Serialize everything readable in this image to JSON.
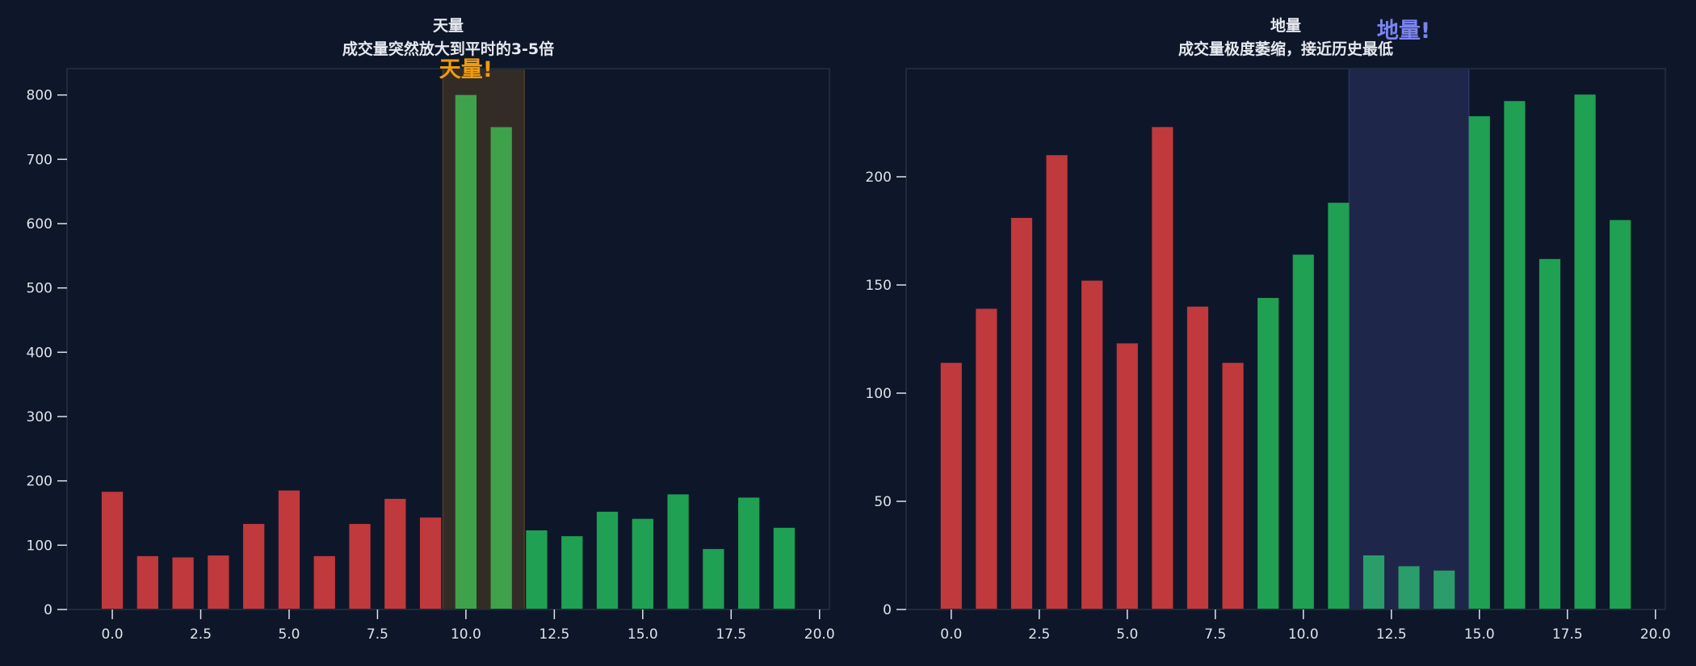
{
  "colors": {
    "background": "#0e1729",
    "axes_edge": "#1e2a3d",
    "tick": "#dfe3ea",
    "down_bar": "#c0393d",
    "up_bar": "#1fa052"
  },
  "chart_data": [
    {
      "type": "bar",
      "title": "天量",
      "subtitle": "成交量突然放大到平时的3-5倍",
      "x": [
        0,
        1,
        2,
        3,
        4,
        5,
        6,
        7,
        8,
        9,
        10,
        11,
        12,
        13,
        14,
        15,
        16,
        17,
        18,
        19
      ],
      "values": [
        183,
        83,
        81,
        84,
        133,
        185,
        83,
        133,
        172,
        143,
        800,
        750,
        123,
        114,
        152,
        141,
        179,
        94,
        174,
        127
      ],
      "bar_colors": [
        "red",
        "red",
        "red",
        "red",
        "red",
        "red",
        "red",
        "red",
        "red",
        "red",
        "highlight",
        "highlight",
        "green",
        "green",
        "green",
        "green",
        "green",
        "green",
        "green",
        "green"
      ],
      "highlight_bar_color": "#3fa24a",
      "xlim": [
        -1.28,
        20.28
      ],
      "ylim": [
        0,
        841
      ],
      "xticks": [
        0,
        2.5,
        5,
        7.5,
        10,
        12.5,
        15,
        17.5,
        20
      ],
      "xtick_labels": [
        "0.0",
        "2.5",
        "5.0",
        "7.5",
        "10.0",
        "12.5",
        "15.0",
        "17.5",
        "20.0"
      ],
      "yticks": [
        0,
        100,
        200,
        300,
        400,
        500,
        600,
        700,
        800
      ],
      "ytick_labels": [
        "0",
        "100",
        "200",
        "300",
        "400",
        "500",
        "600",
        "700",
        "800"
      ],
      "span": {
        "from": 9.35,
        "to": 11.65,
        "fill": "#332c26",
        "edge": "#4d3d29"
      },
      "annotation": {
        "text": "天量!",
        "x": 10.0,
        "y": 841,
        "color": "#f29b0c"
      }
    },
    {
      "type": "bar",
      "title": "地量",
      "subtitle": "成交量极度萎缩，接近历史最低",
      "x": [
        0,
        1,
        2,
        3,
        4,
        5,
        6,
        7,
        8,
        9,
        10,
        11,
        12,
        13,
        14,
        15,
        16,
        17,
        18,
        19
      ],
      "values": [
        114,
        139,
        181,
        210,
        152,
        123,
        223,
        140,
        114,
        144,
        164,
        188,
        25,
        20,
        18,
        228,
        235,
        162,
        238,
        180
      ],
      "bar_colors": [
        "red",
        "red",
        "red",
        "red",
        "red",
        "red",
        "red",
        "red",
        "red",
        "green",
        "green",
        "green",
        "highlight",
        "highlight",
        "highlight",
        "green",
        "green",
        "green",
        "green",
        "green"
      ],
      "highlight_bar_color": "#2a9d6b",
      "xlim": [
        -1.28,
        20.28
      ],
      "ylim": [
        0,
        250
      ],
      "xticks": [
        0,
        2.5,
        5,
        7.5,
        10,
        12.5,
        15,
        17.5,
        20
      ],
      "xtick_labels": [
        "0.0",
        "2.5",
        "5.0",
        "7.5",
        "10.0",
        "12.5",
        "15.0",
        "17.5",
        "20.0"
      ],
      "yticks": [
        0,
        50,
        100,
        150,
        200
      ],
      "ytick_labels": [
        "0",
        "50",
        "100",
        "150",
        "200"
      ],
      "span": {
        "from": 11.3,
        "to": 14.7,
        "fill": "#1e2749",
        "edge": "#2c3668"
      },
      "annotation": {
        "text": "地量!",
        "x": 12.85,
        "y": 268,
        "color": "#7b84ee"
      }
    }
  ]
}
